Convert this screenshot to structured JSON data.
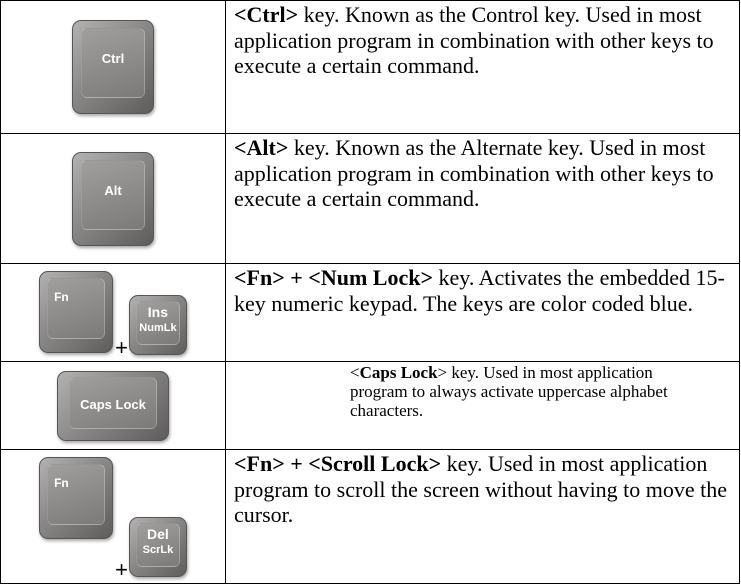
{
  "table": {
    "rows": [
      {
        "keys": [
          {
            "label": "Ctrl"
          }
        ],
        "description": [
          {
            "text": "<Ctrl>",
            "bold": true
          },
          {
            "text": " key. Known as the Control key. Used in most application program in combination with other keys to execute a certain command.",
            "bold": false
          }
        ]
      },
      {
        "keys": [
          {
            "label": "Alt"
          }
        ],
        "description": [
          {
            "text": "<Alt>",
            "bold": true
          },
          {
            "text": " key. Known as the Alternate key. Used in most application program in combination with other keys to execute a certain command.",
            "bold": false
          }
        ]
      },
      {
        "keys": [
          {
            "label": "Fn"
          },
          {
            "label": "Ins",
            "sublabel": "NumLk"
          }
        ],
        "joiner": "+",
        "description": [
          {
            "text": "<Fn> + <Num Lock>",
            "bold": true
          },
          {
            "text": " key. Activates the embedded 15-key numeric keypad. The keys are color coded blue.",
            "bold": false
          }
        ]
      },
      {
        "keys": [
          {
            "label": "Caps Lock"
          }
        ],
        "description": [
          {
            "text": "<",
            "bold": false
          },
          {
            "text": "Caps Lock",
            "bold": true
          },
          {
            "text": "> key. Used in most application program to always activate uppercase alphabet characters.",
            "bold": false
          }
        ]
      },
      {
        "keys": [
          {
            "label": "Fn"
          },
          {
            "label": "Del",
            "sublabel": "ScrLk"
          }
        ],
        "joiner": "+",
        "description": [
          {
            "text": "<Fn> + <Scroll Lock>",
            "bold": true
          },
          {
            "text": " key. Used in most application program to scroll the screen without having to move the cursor.",
            "bold": false
          }
        ]
      }
    ]
  }
}
